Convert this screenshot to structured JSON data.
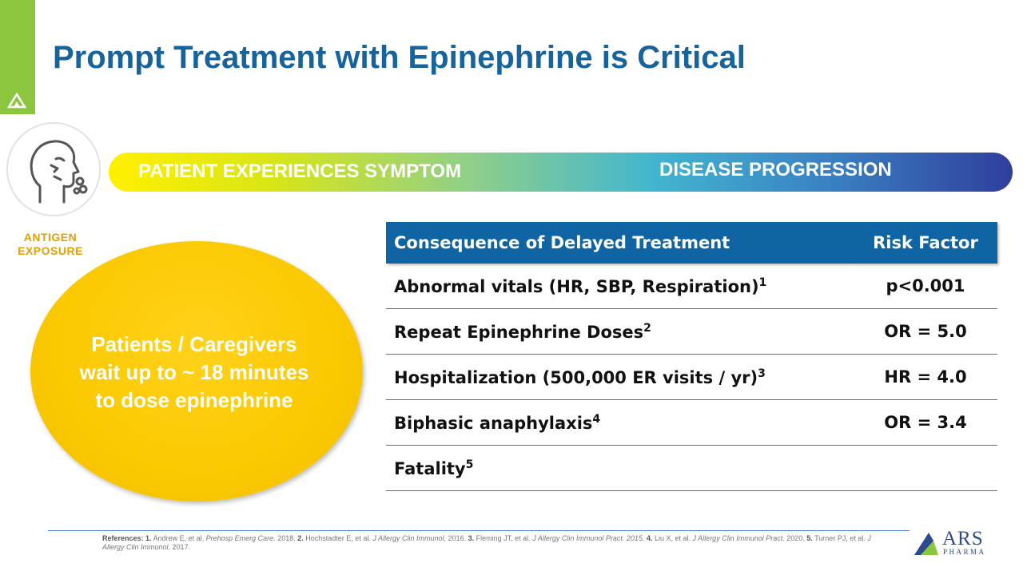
{
  "slide": {
    "title": "Prompt Treatment with Epinephrine is Critical"
  },
  "progress": {
    "left_label": "PATIENT EXPERIENCES SYMPTOM",
    "right_label": "DISEASE PROGRESSION"
  },
  "antigen_label": [
    "ANTIGEN",
    "EXPOSURE"
  ],
  "callout": [
    "Patients / Caregivers",
    "wait up to ~ 18 minutes",
    "to dose epinephrine"
  ],
  "table": {
    "headers": [
      "Consequence of Delayed Treatment",
      "Risk Factor"
    ],
    "rows": [
      {
        "label": "Abnormal vitals (HR, SBP, Respiration)",
        "sup": "1",
        "value": "p<0.001"
      },
      {
        "label": "Repeat Epinephrine Doses",
        "sup": "2",
        "value": "OR = 5.0"
      },
      {
        "label": "Hospitalization (500,000 ER visits / yr)",
        "sup": "3",
        "value": "HR = 4.0"
      },
      {
        "label": "Biphasic anaphylaxis",
        "sup": "4",
        "value": "OR = 3.4"
      },
      {
        "label": "Fatality",
        "sup": "5",
        "value": ""
      }
    ]
  },
  "references": {
    "prefix": "References:",
    "items": [
      {
        "num": "1.",
        "authors": "Andrew E, et al.",
        "journal": "Prehosp Emerg Care.",
        "year": "2018."
      },
      {
        "num": "2.",
        "authors": "Hochstadter E, et al.",
        "journal": "J Allergy Clin Immunol.",
        "year": "2016."
      },
      {
        "num": "3.",
        "authors": "Fleming JT, et al.",
        "journal": "J Allergy Clin Immunol Pract. 2015.",
        "year": ""
      },
      {
        "num": "4.",
        "authors": "Liu X, et al.",
        "journal": "J Allergy Clin Immunol Pract.",
        "year": "2020."
      },
      {
        "num": "5.",
        "authors": "Turner PJ, et al.",
        "journal": "J Allergy Clin Immunol.",
        "year": "2017."
      }
    ]
  },
  "logo": {
    "name": "ARS",
    "sub": "PHARMA"
  },
  "colors": {
    "title": "#17639c",
    "accent_green": "#8cc63f",
    "header_blue": "#0f65a3",
    "callout_yellow": "#fbc900",
    "antigen_text": "#e6a100"
  },
  "icons": [
    "brand-triangle-icon",
    "person-sneezing-icon",
    "ars-logo-icon"
  ]
}
